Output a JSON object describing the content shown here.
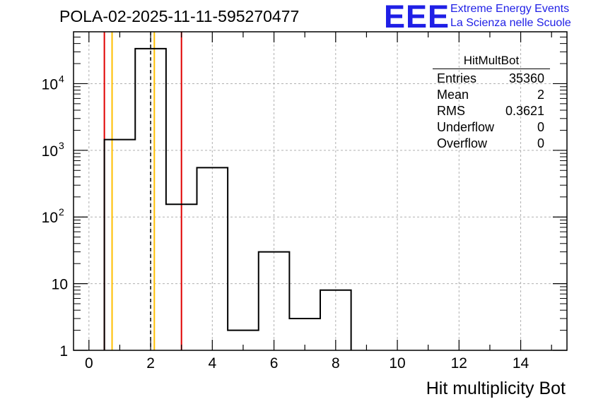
{
  "header": {
    "title": "POLA-02-2025-11-11-595270477",
    "logo_text": "EEE",
    "logo_line1": "Extreme Energy Events",
    "logo_line2": "La Scienza nelle Scuole",
    "logo_color": "#1f1fe6"
  },
  "stats": {
    "name": "HitMultBot",
    "rows": [
      {
        "label": "Entries",
        "value": "35360"
      },
      {
        "label": "Mean",
        "value": "2"
      },
      {
        "label": "RMS",
        "value": "0.3621"
      },
      {
        "label": "Underflow",
        "value": "0"
      },
      {
        "label": "Overflow",
        "value": "0"
      }
    ]
  },
  "chart_data": {
    "type": "histogram",
    "title": "POLA-02-2025-11-11-595270477",
    "xlabel": "Hit multiplicity Bot",
    "ylabel": "",
    "yscale": "log",
    "xlim": [
      -0.5,
      15.5
    ],
    "ylim": [
      1,
      60000
    ],
    "grid": true,
    "bin_edges": [
      0.5,
      1.5,
      2.5,
      3.5,
      4.5,
      5.5,
      6.5,
      7.5,
      8.5
    ],
    "values": [
      1450,
      33500,
      155,
      550,
      2,
      30,
      3,
      8
    ],
    "x_ticks": [
      "0",
      "2",
      "4",
      "6",
      "8",
      "10",
      "12",
      "14"
    ],
    "y_ticks": [
      {
        "base": "1",
        "exp": ""
      },
      {
        "base": "10",
        "exp": ""
      },
      {
        "base": "10",
        "exp": "2"
      },
      {
        "base": "10",
        "exp": "3"
      },
      {
        "base": "10",
        "exp": "4"
      }
    ],
    "vertical_lines": [
      {
        "x": 0.5,
        "color": "#e00000",
        "style": "solid"
      },
      {
        "x": 0.75,
        "color": "#ffbf00",
        "style": "solid"
      },
      {
        "x": 2.0,
        "color": "#000000",
        "style": "dashed"
      },
      {
        "x": 2.12,
        "color": "#ffbf00",
        "style": "solid"
      },
      {
        "x": 3.0,
        "color": "#e00000",
        "style": "solid"
      }
    ],
    "line_color": "#000000"
  }
}
